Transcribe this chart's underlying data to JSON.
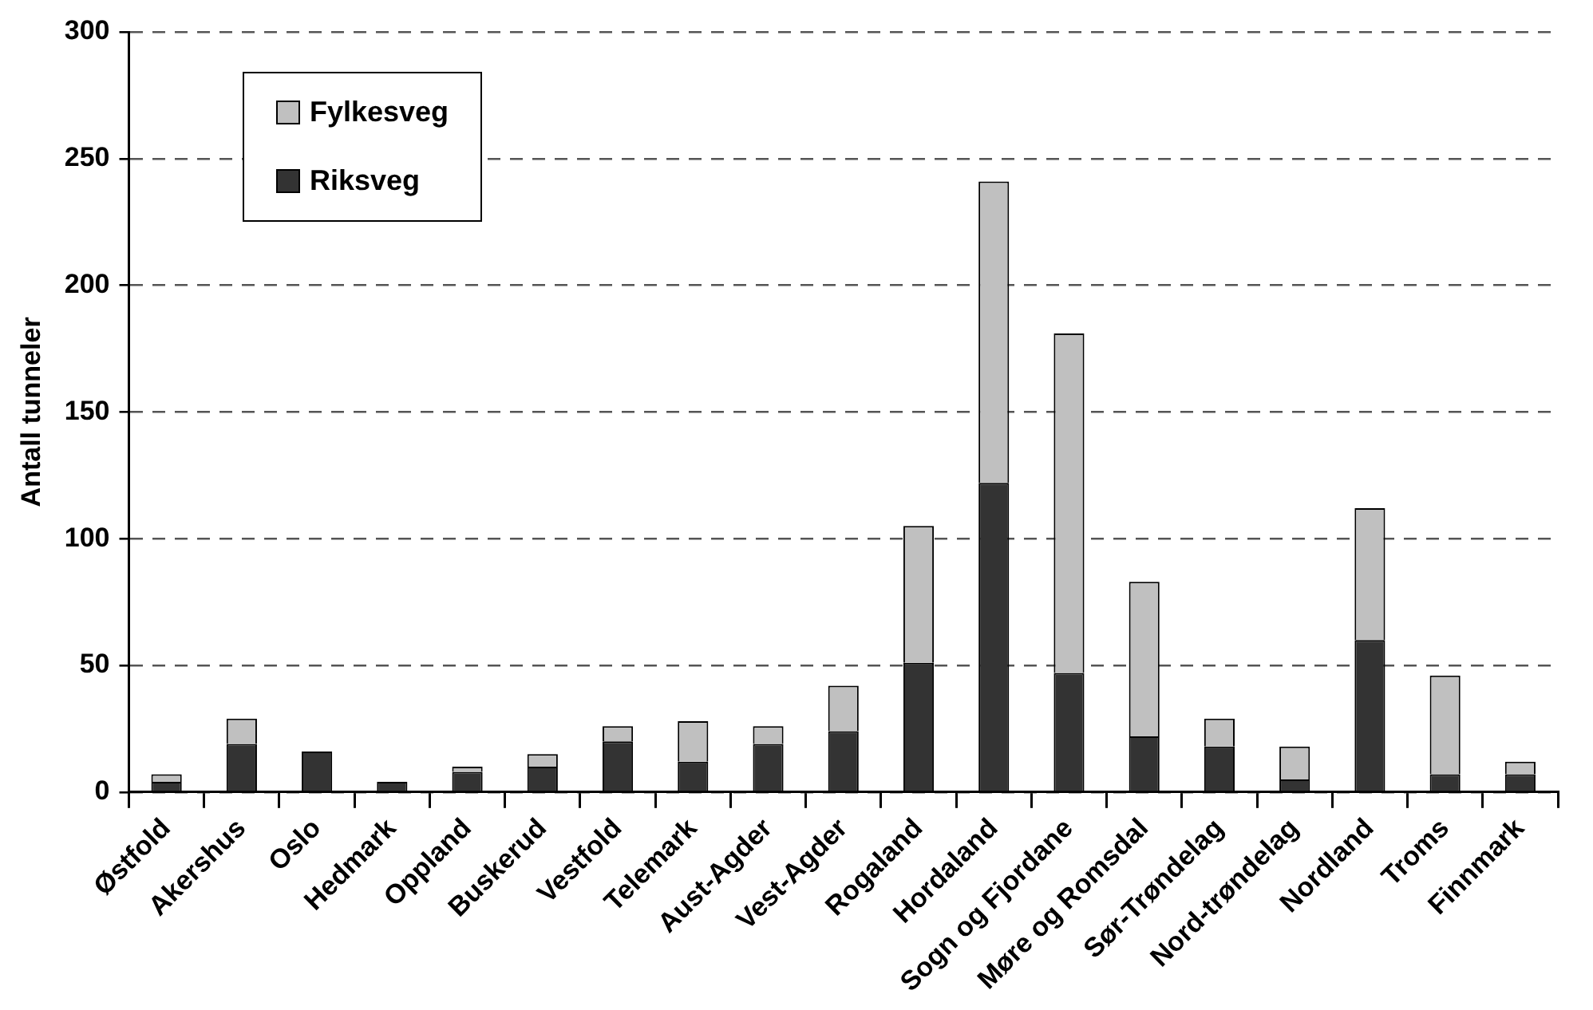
{
  "chart_data": {
    "type": "bar",
    "stacked": true,
    "ylabel": "Antall tunneler",
    "categories": [
      "Østfold",
      "Akershus",
      "Oslo",
      "Hedmark",
      "Oppland",
      "Buskerud",
      "Vestfold",
      "Telemark",
      "Aust-Agder",
      "Vest-Agder",
      "Rogaland",
      "Hordaland",
      "Sogn og Fjordane",
      "Møre og Romsdal",
      "Sør-Trøndelag",
      "Nord-trøndelag",
      "Nordland",
      "Troms",
      "Finnmark"
    ],
    "series": [
      {
        "name": "Riksveg",
        "color": "#333333",
        "values": [
          4,
          19,
          16,
          4,
          8,
          10,
          20,
          12,
          19,
          24,
          51,
          122,
          47,
          22,
          18,
          5,
          60,
          7,
          7
        ]
      },
      {
        "name": "Fylkesveg",
        "color": "#c0c0c0",
        "values": [
          3,
          10,
          0,
          0,
          2,
          5,
          6,
          16,
          7,
          18,
          54,
          119,
          134,
          61,
          11,
          13,
          52,
          39,
          5
        ]
      }
    ],
    "ylim": [
      0,
      300
    ],
    "yticks": [
      0,
      50,
      100,
      150,
      200,
      250,
      300
    ],
    "grid": "y",
    "legend": "top left"
  }
}
